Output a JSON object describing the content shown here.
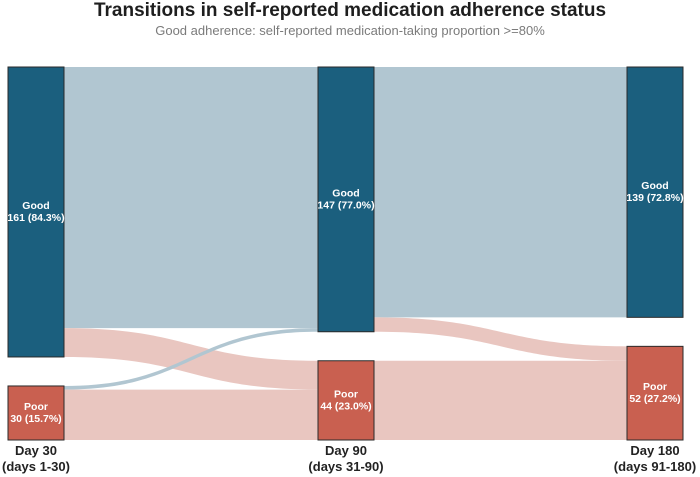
{
  "chart_data": {
    "type": "sankey",
    "title": "Transitions in self-reported medication adherence status",
    "subtitle": "Good adherence: self-reported medication-taking proportion >=80%",
    "stages": [
      {
        "name": "Day 30",
        "period": "(days 1-30)"
      },
      {
        "name": "Day 90",
        "period": "(days 31-90)"
      },
      {
        "name": "Day 180",
        "period": "(days 91-180)"
      }
    ],
    "nodes": [
      {
        "stage": 0,
        "status": "Good",
        "count": 161,
        "percent": "84.3%",
        "label": "161 (84.3%)"
      },
      {
        "stage": 0,
        "status": "Poor",
        "count": 30,
        "percent": "15.7%",
        "label": "30 (15.7%)"
      },
      {
        "stage": 1,
        "status": "Good",
        "count": 147,
        "percent": "77.0%",
        "label": "147 (77.0%)"
      },
      {
        "stage": 1,
        "status": "Poor",
        "count": 44,
        "percent": "23.0%",
        "label": "44 (23.0%)"
      },
      {
        "stage": 2,
        "status": "Good",
        "count": 139,
        "percent": "72.8%",
        "label": "139 (72.8%)"
      },
      {
        "stage": 2,
        "status": "Poor",
        "count": 52,
        "percent": "27.2%",
        "label": "52 (27.2%)"
      }
    ],
    "links": [
      {
        "from_stage": 0,
        "from": "Good",
        "to": "Good",
        "value": 145
      },
      {
        "from_stage": 0,
        "from": "Good",
        "to": "Poor",
        "value": 16
      },
      {
        "from_stage": 0,
        "from": "Poor",
        "to": "Good",
        "value": 2
      },
      {
        "from_stage": 0,
        "from": "Poor",
        "to": "Poor",
        "value": 28
      },
      {
        "from_stage": 1,
        "from": "Good",
        "to": "Good",
        "value": 139
      },
      {
        "from_stage": 1,
        "from": "Good",
        "to": "Poor",
        "value": 8
      },
      {
        "from_stage": 1,
        "from": "Poor",
        "to": "Good",
        "value": 0
      },
      {
        "from_stage": 1,
        "from": "Poor",
        "to": "Poor",
        "value": 44
      }
    ],
    "colors": {
      "good_node": "#1b5f7e",
      "poor_node": "#c96050",
      "good_link": "#b1c6d1",
      "poor_link": "#e9c6c0",
      "node_border": "#2a2a2a"
    }
  }
}
